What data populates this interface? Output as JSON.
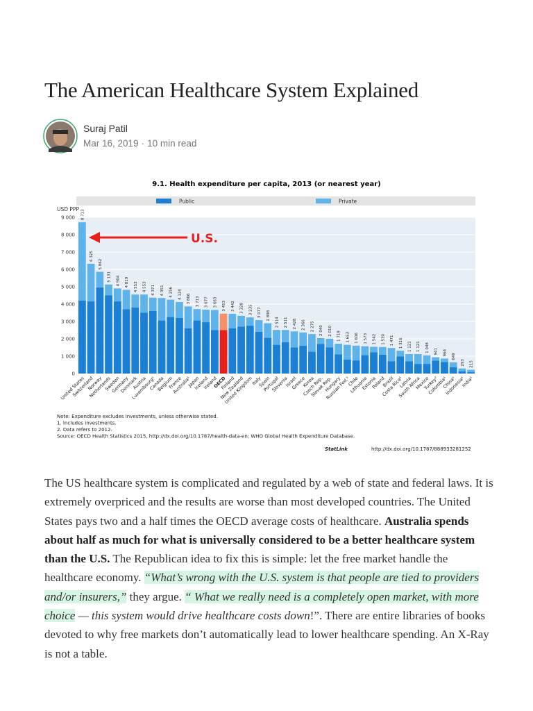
{
  "article": {
    "title": "The American Healthcare System Explained",
    "author": "Suraj Patil",
    "date": "Mar 16, 2019",
    "read_time": "10 min read",
    "figure": {
      "chart_data": {
        "type": "bar",
        "title": "9.1.  Health expenditure per capita, 2013 (or nearest year)",
        "y_label": "USD PPP",
        "legend": [
          {
            "name": "Public",
            "color": "#1b7fd4"
          },
          {
            "name": "Private",
            "color": "#5eb4ea"
          }
        ],
        "categories": [
          "United States",
          "Switzerland",
          "Norway",
          "Netherlands",
          "Sweden",
          "Germany",
          "Denmark",
          "Austria",
          "Luxembourg¹",
          "Canada",
          "Belgium",
          "France",
          "Australia¹",
          "Japan",
          "Iceland",
          "Ireland",
          "OECD",
          "Finland",
          "New Zealand",
          "United Kingdom",
          "Italy",
          "Spain",
          "Portugal",
          "Slovenia",
          "Israel",
          "Greece",
          "Korea",
          "Czech Rep.",
          "Slovak Rep.",
          "Hungary",
          "Russian Fed.¹",
          "Chile",
          "Lithuania",
          "Estonia",
          "Poland",
          "Brazil",
          "Costa Rica¹",
          "Latvia",
          "South Africa",
          "Mexico",
          "Turkey²",
          "Colombia¹",
          "China¹",
          "Indonesia¹",
          "India¹"
        ],
        "values": [
          8713,
          6325,
          5862,
          5131,
          4904,
          4819,
          4553,
          4553,
          4371,
          4351,
          4256,
          4124,
          3866,
          3713,
          3677,
          3663,
          3453,
          3442,
          3328,
          3235,
          3077,
          2898,
          2514,
          2511,
          2428,
          2366,
          2275,
          2040,
          2010,
          1719,
          1653,
          1606,
          1573,
          1542,
          1530,
          1471,
          1316,
          1121,
          1121,
          1048,
          941,
          864,
          649,
          293,
          215
        ],
        "value_labels": [
          "8 713",
          "6 325",
          "5 862",
          "5 131",
          "4 904",
          "4 819",
          "4 553",
          "4 553",
          "4 371",
          "4 351",
          "4 256",
          "4 124",
          "3 866",
          "3 713",
          "3 677",
          "3 663",
          "3 453",
          "3 442",
          "3 328",
          "3 235",
          "3 077",
          "2 898",
          "2 514",
          "2 511",
          "2 428",
          "2 366",
          "2 275",
          "2 040",
          "2 010",
          "1 719",
          "1 653",
          "1 606",
          "1 573",
          "1 542",
          "1 530",
          "1 471",
          "1 316",
          "1 121",
          "1 121",
          "1 048",
          "941",
          "864",
          "649",
          "293",
          "215"
        ],
        "public": [
          4200,
          4150,
          4950,
          4500,
          4150,
          3700,
          3800,
          3500,
          3600,
          3050,
          3250,
          3200,
          2600,
          3050,
          2950,
          2500,
          2500,
          2600,
          2700,
          2750,
          2400,
          2050,
          1650,
          1800,
          1500,
          1600,
          1250,
          1700,
          1500,
          1100,
          800,
          750,
          1050,
          1220,
          1080,
          700,
          980,
          700,
          550,
          550,
          740,
          660,
          360,
          120,
          70
        ],
        "highlight": {
          "index": 16,
          "public_color": "#e8201c",
          "private_color": "#f4906a"
        },
        "ylim": [
          0,
          9000
        ],
        "yticks": [
          0,
          {
            "value": 1000,
            "label": "1 000"
          },
          {
            "value": 2000,
            "label": "2 000"
          },
          {
            "value": 3000,
            "label": "3 000"
          },
          {
            "value": 4000,
            "label": "4 000"
          },
          {
            "value": 5000,
            "label": "5 000"
          },
          {
            "value": 6000,
            "label": "6 000"
          },
          {
            "value": 7000,
            "label": "7 000"
          },
          {
            "value": 8000,
            "label": "8 000"
          },
          {
            "value": 9000,
            "label": "9 000"
          }
        ],
        "grid": true,
        "annotation": "U.S.",
        "notes": [
          "Note:  Expenditure excludes investments, unless otherwise stated.",
          "1.  Includes investments.",
          "2.  Data refers to 2012.",
          "Source:  OECD Health Statistics 2015, http://dx.doi.org/10.1787/health-data-en; WHO Global Health Expenditure Database."
        ],
        "statlink": "StatLink",
        "statlink_url": "http://dx.doi.org/10.1787/888933281252"
      }
    },
    "body": [
      {
        "text": "The US healthcare system is complicated and regulated by a web of state and federal laws. It is extremely overpriced and the results are worse than most developed countries. The United States pays two and a half times the OECD average costs of healthcare. ",
        "style": "normal"
      },
      {
        "text": "Australia spends about half as much for what is universally considered to be a better healthcare system than the U.S.",
        "style": "bold"
      },
      {
        "text": " The Republican idea to fix this is simple: let the free market handle the healthcare economy. ",
        "style": "normal"
      },
      {
        "text": "“What’s wrong with the U.S. system is that people are tied to providers and/or insurers,”",
        "style": "highlight"
      },
      {
        "text": " they argue. ",
        "style": "normal"
      },
      {
        "text": "“ What we really need is a completely open market, with more choice",
        "style": "highlight"
      },
      {
        "text": " — this system would drive healthcare costs down",
        "style": "italic"
      },
      {
        "text": "!”. There are entire libraries of books devoted to why free markets don’t automatically lead to lower healthcare spending. An X-Ray is not a table.",
        "style": "normal"
      }
    ]
  }
}
